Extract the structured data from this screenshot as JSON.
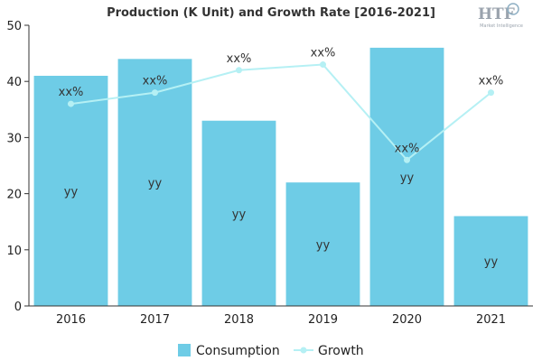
{
  "chart_data": {
    "type": "bar",
    "title": "Production (K Unit) and Growth Rate [2016-2021]",
    "categories": [
      "2016",
      "2017",
      "2018",
      "2019",
      "2020",
      "2021"
    ],
    "ylim": [
      0,
      50
    ],
    "yticks": [
      0,
      10,
      20,
      30,
      40,
      50
    ],
    "grid": false,
    "legend_position": "bottom",
    "series": [
      {
        "name": "Consumption",
        "kind": "bar",
        "color": "#6ecce6",
        "values": [
          41,
          44,
          33,
          22,
          46,
          16
        ],
        "labels": [
          "yy",
          "yy",
          "yy",
          "yy",
          "yy",
          "yy"
        ]
      },
      {
        "name": "Growth",
        "kind": "line",
        "color": "#b5f0f4",
        "values": [
          36,
          38,
          42,
          43,
          26,
          38
        ],
        "labels": [
          "xx%",
          "xx%",
          "xx%",
          "xx%",
          "xx%",
          "xx%"
        ]
      }
    ]
  },
  "logo": {
    "text": "HTF",
    "subtitle": "Market Intelligence"
  }
}
